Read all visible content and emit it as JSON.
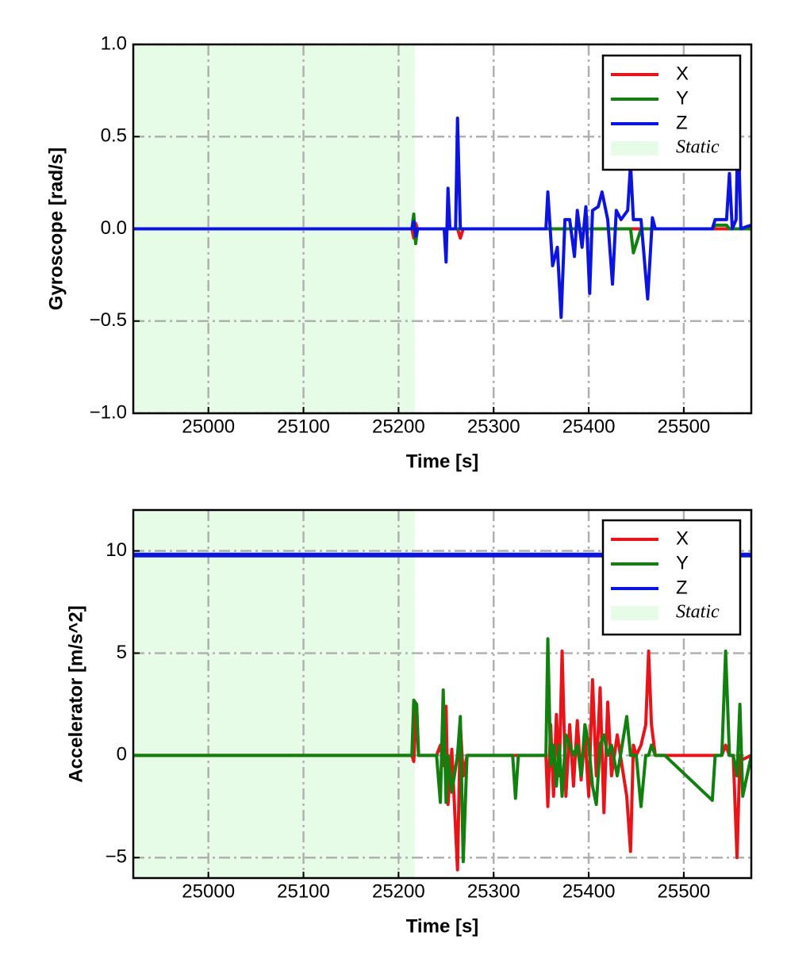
{
  "chart_data": [
    {
      "type": "line",
      "xlabel": "Time [s]",
      "ylabel": "Gyroscope [rad/s]",
      "xlim": [
        24921,
        25571
      ],
      "ylim": [
        -1,
        1
      ],
      "xticks": [
        25000,
        25100,
        25200,
        25300,
        25400,
        25500
      ],
      "yticks": [
        {
          "value": -1,
          "label": "−1.0"
        },
        {
          "value": -0.5,
          "label": "−0.5"
        },
        {
          "value": 0,
          "label": "0.0"
        },
        0.5,
        {
          "value": 1,
          "label": "1.0"
        }
      ],
      "grid": true,
      "legend": "upper right",
      "shaded_span": {
        "name": "Static",
        "color": "#e6fce6",
        "xmin": 24921,
        "xmax": 25217
      },
      "x": [
        24921,
        25000,
        25100,
        25200,
        25214,
        25216,
        25218,
        25220,
        25248,
        25250,
        25252,
        25254,
        25260,
        25262,
        25265,
        25268,
        25355,
        25357,
        25362,
        25367,
        25371,
        25375,
        25380,
        25385,
        25388,
        25393,
        25397,
        25401,
        25404,
        25410,
        25414,
        25420,
        25425,
        25429,
        25434,
        25441,
        25444,
        25447,
        25455,
        25462,
        25467,
        25470,
        25530,
        25533,
        25545,
        25548,
        25551,
        25555,
        25557,
        25560,
        25565,
        25571
      ],
      "series": [
        {
          "name": "X",
          "color": "#e8141a",
          "values": [
            0,
            0,
            0,
            0,
            0,
            -0.05,
            0.03,
            0,
            0,
            0,
            0,
            0,
            0,
            0,
            -0.05,
            0,
            0,
            0,
            0,
            0,
            0,
            0,
            0,
            0,
            0,
            0,
            0,
            0,
            0,
            0,
            0,
            0,
            0,
            0,
            0,
            0,
            0,
            0,
            0,
            0,
            0,
            0,
            0,
            0,
            0,
            0,
            0,
            0,
            0,
            0,
            0,
            0
          ]
        },
        {
          "name": "Y",
          "color": "#11800f",
          "values": [
            0,
            0,
            0,
            0,
            0,
            0.08,
            -0.08,
            0,
            0,
            0,
            0,
            0,
            0,
            0,
            0,
            0,
            0,
            0,
            0,
            0,
            0,
            0,
            0,
            0,
            0,
            0,
            0,
            0,
            0,
            0,
            0,
            0,
            0,
            0,
            0,
            0,
            0,
            -0.13,
            0,
            0,
            0,
            0,
            0,
            0.02,
            0.02,
            0,
            0,
            0,
            0,
            0,
            0,
            0
          ]
        },
        {
          "name": "Z",
          "color": "#0b14e0",
          "values": [
            0,
            0,
            0,
            0,
            0,
            0.04,
            -0.04,
            0,
            0,
            -0.18,
            0.22,
            0,
            0,
            0.6,
            0,
            0,
            0,
            0.2,
            -0.2,
            -0.1,
            -0.48,
            0.05,
            0.05,
            -0.15,
            0.1,
            -0.1,
            0.12,
            -0.35,
            0.1,
            0.12,
            0.2,
            0.05,
            -0.3,
            0.1,
            0.05,
            0.1,
            0.35,
            0.05,
            0.05,
            -0.38,
            0.06,
            0,
            0,
            0.05,
            0.05,
            0.3,
            0,
            0.05,
            0.6,
            0,
            0.01,
            0.02
          ]
        }
      ]
    },
    {
      "type": "line",
      "xlabel": "Time [s]",
      "ylabel": "Accelerator [m/s^2]",
      "xlim": [
        24921,
        25571
      ],
      "ylim": [
        -6,
        12
      ],
      "xticks": [
        25000,
        25100,
        25200,
        25300,
        25400,
        25500
      ],
      "yticks": [
        {
          "value": -5,
          "label": "−5"
        },
        0,
        5,
        10
      ],
      "grid": true,
      "legend": "upper right",
      "shaded_span": {
        "name": "Static",
        "color": "#e6fce6",
        "xmin": 24921,
        "xmax": 25217
      },
      "x": [
        24921,
        25000,
        25100,
        25200,
        25214,
        25216,
        25219,
        25221,
        25240,
        25244,
        25247,
        25250,
        25252,
        25256,
        25262,
        25265,
        25268,
        25272,
        25300,
        25320,
        25323,
        25326,
        25355,
        25357,
        25360,
        25363,
        25366,
        25369,
        25372,
        25376,
        25380,
        25384,
        25388,
        25392,
        25396,
        25400,
        25404,
        25408,
        25412,
        25416,
        25420,
        25424,
        25430,
        25440,
        25444,
        25447,
        25450,
        25455,
        25460,
        25463,
        25466,
        25470,
        25480,
        25530,
        25533,
        25540,
        25544,
        25548,
        25552,
        25556,
        25559,
        25562,
        25571
      ],
      "series": [
        {
          "name": "X",
          "color": "#e8141a",
          "values": [
            0,
            0,
            0,
            0,
            0,
            -0.3,
            2.5,
            0,
            0,
            0.5,
            -0.5,
            2.4,
            -2.4,
            0.3,
            -5.6,
            1.5,
            -1,
            0,
            0,
            0,
            0,
            0,
            0,
            -2.5,
            1.5,
            -2,
            2,
            -1,
            5.1,
            -2,
            1.5,
            -1.5,
            1.7,
            -1.2,
            1,
            -2,
            3.7,
            -1,
            3.3,
            -2.8,
            2.6,
            -1,
            1,
            -2,
            -4.7,
            0.5,
            0,
            0.5,
            1.5,
            5.1,
            1.5,
            0,
            0,
            0,
            0,
            0,
            0.5,
            0,
            0,
            -5,
            0,
            -0.2,
            0
          ]
        },
        {
          "name": "Y",
          "color": "#11800f",
          "values": [
            0,
            0,
            0,
            0,
            0,
            2.7,
            2.5,
            0,
            0,
            -2.3,
            3.2,
            -2.3,
            0,
            -1.8,
            0,
            1.9,
            -5.2,
            0,
            0,
            0,
            -2.1,
            0,
            0,
            5.7,
            -0.5,
            0.5,
            -1.5,
            0.5,
            -2,
            1,
            0.5,
            0,
            0.5,
            -1,
            1.5,
            0.5,
            -1.5,
            -2.4,
            0.5,
            1,
            0,
            0.5,
            -1,
            1.9,
            0,
            0,
            0,
            -2.5,
            0,
            0,
            0.5,
            0,
            0,
            -2.2,
            0,
            0,
            5.1,
            0,
            0,
            -1,
            2.5,
            -2,
            0
          ]
        },
        {
          "name": "Z",
          "color": "#0b14e0",
          "values": [
            9.8,
            9.8,
            9.8,
            9.8,
            9.8,
            9.8,
            9.8,
            9.8,
            9.8,
            9.8,
            9.8,
            9.8,
            9.8,
            9.8,
            9.8,
            9.8,
            9.8,
            9.8,
            9.8,
            9.8,
            9.8,
            9.8,
            9.8,
            9.8,
            9.8,
            9.8,
            9.8,
            9.8,
            9.8,
            9.8,
            9.8,
            9.8,
            9.8,
            9.8,
            9.8,
            9.8,
            9.8,
            9.8,
            9.8,
            9.8,
            9.8,
            9.8,
            9.8,
            9.8,
            9.8,
            9.8,
            9.8,
            9.8,
            9.8,
            9.8,
            9.8,
            9.8,
            9.8,
            9.8,
            9.8,
            9.8,
            9.8,
            9.8,
            9.8,
            9.8,
            9.8,
            9.8,
            9.8
          ]
        }
      ]
    }
  ]
}
